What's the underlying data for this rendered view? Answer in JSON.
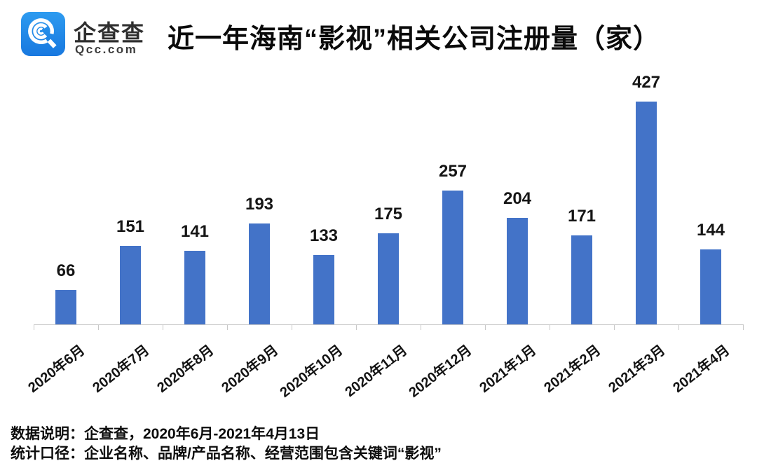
{
  "header": {
    "logo": {
      "brand": "企查查",
      "domain": "Qcc.com",
      "icon": "qcc-magnifier-icon",
      "icon_color": "#1F87E8"
    }
  },
  "chart_data": {
    "type": "bar",
    "title": "近一年海南“影视”相关公司注册量（家）",
    "categories": [
      "2020年6月",
      "2020年7月",
      "2020年8月",
      "2020年9月",
      "2020年10月",
      "2020年11月",
      "2020年12月",
      "2021年1月",
      "2021年2月",
      "2021年3月",
      "2021年4月"
    ],
    "values": [
      66,
      151,
      141,
      193,
      133,
      175,
      257,
      204,
      171,
      427,
      144
    ],
    "xlabel": "",
    "ylabel": "",
    "ylim": [
      0,
      450
    ],
    "gridlines": false,
    "legend": "none",
    "y_axis_visible": false,
    "data_labels": true,
    "bar_color": "#4373C8",
    "axis_color": "#c8c8c8",
    "label_color": "#151515"
  },
  "footer": {
    "line1": "数据说明：企查查，2020年6月-2021年4月13日",
    "line2": "统计口径：企业名称、品牌/产品名称、经营范围包含关键词“影视”"
  }
}
